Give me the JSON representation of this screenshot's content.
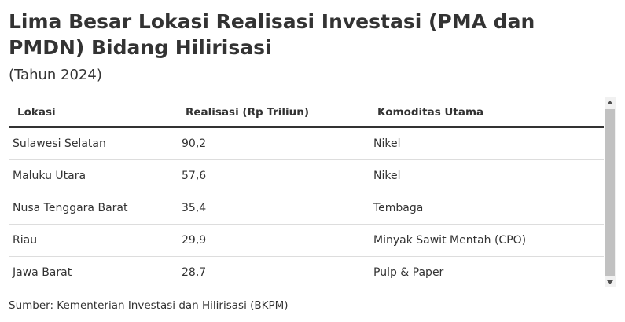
{
  "header": {
    "title": "Lima Besar Lokasi Realisasi Investasi (PMA dan PMDN) Bidang Hilirisasi",
    "subtitle": "(Tahun 2024)"
  },
  "table": {
    "columns": [
      "Lokasi",
      "Realisasi (Rp Triliun)",
      "Komoditas Utama"
    ],
    "rows": [
      [
        "Sulawesi Selatan",
        "90,2",
        "Nikel"
      ],
      [
        "Maluku Utara",
        "57,6",
        "Nikel"
      ],
      [
        "Nusa Tenggara Barat",
        "35,4",
        "Tembaga"
      ],
      [
        "Riau",
        "29,9",
        "Minyak Sawit Mentah (CPO)"
      ],
      [
        "Jawa Barat",
        "28,7",
        "Pulp & Paper"
      ]
    ]
  },
  "footer": {
    "source": "Sumber: Kementerian Investasi dan Hilirisasi (BKPM)"
  }
}
